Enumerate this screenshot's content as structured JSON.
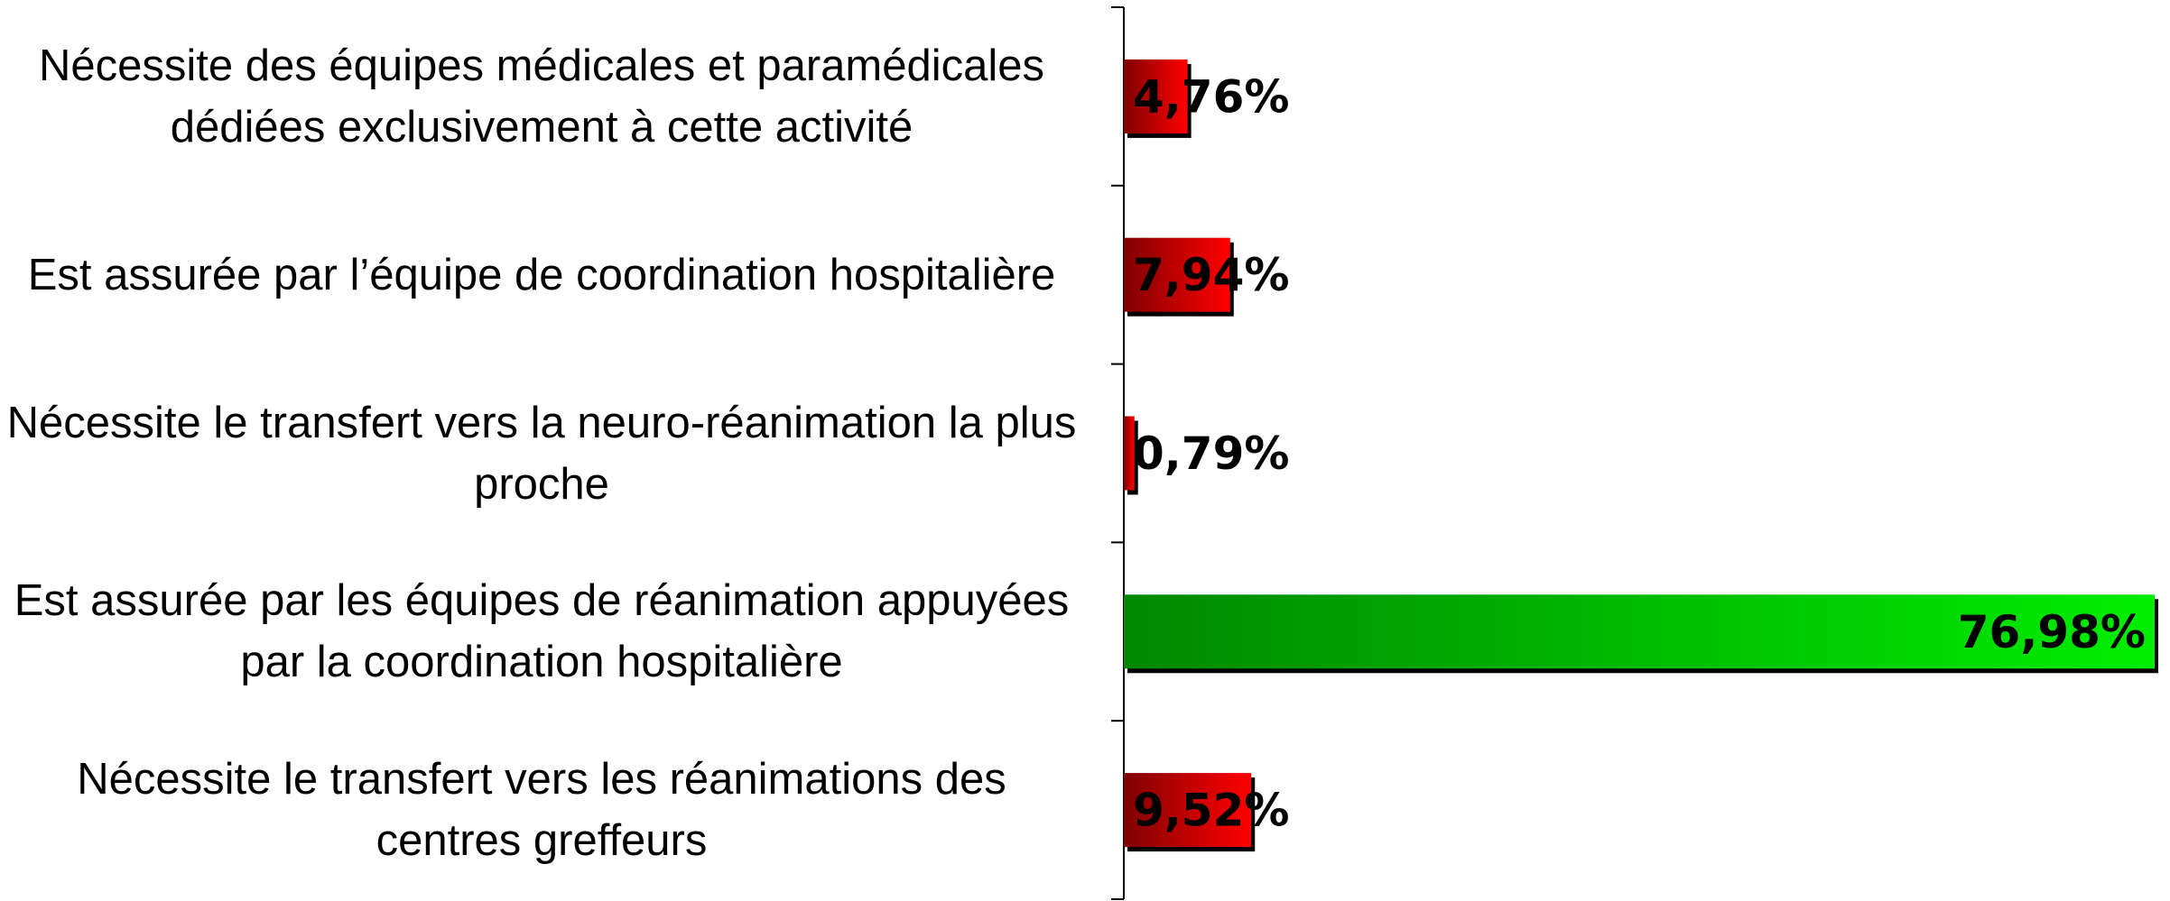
{
  "chart_data": {
    "type": "barh",
    "categories": [
      "Nécessite des équipes médicales et paramédicales dédiées exclusivement à cette activité",
      "Est assurée par l’équipe de coordination hospitalière",
      "Nécessite le transfert vers la neuro-réanimation la plus proche",
      "Est assurée par les équipes de réanimation appuyées par la coordination hospitalière",
      "Nécessite le transfert vers les réanimations des centres greffeurs"
    ],
    "values": [
      4.76,
      7.94,
      0.79,
      76.98,
      9.52
    ],
    "value_labels": [
      "4,76%",
      "7,94%",
      "0,79%",
      "76,98%",
      "9,52%"
    ],
    "colors": [
      "#ff0000",
      "#ff0000",
      "#ff0000",
      "#00ee00",
      "#ff0000"
    ]
  }
}
